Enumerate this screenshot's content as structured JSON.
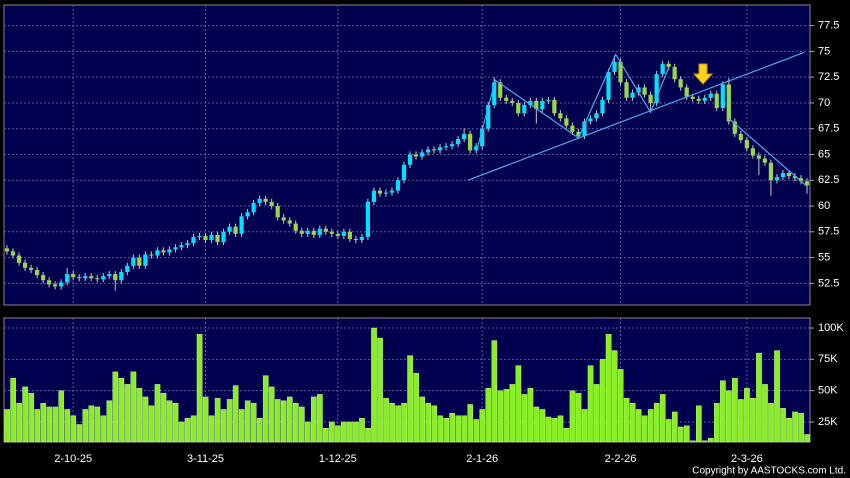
{
  "chart_data": [
    {
      "type": "candlestick",
      "up_color": "#00e0ff",
      "down_color": "#98d848",
      "ylim": [
        50.4,
        79.5
      ],
      "yticks": [
        52.5,
        55,
        57.5,
        60,
        62.5,
        65,
        67.5,
        70,
        72.5,
        75,
        77.5
      ],
      "grid": true,
      "open": [
        55.9,
        55.6,
        55.2,
        54.5,
        54.0,
        53.8,
        53.3,
        52.8,
        52.4,
        52.2,
        52.6,
        53.4,
        53.1,
        53.0,
        53.2,
        53.0,
        52.9,
        53.2,
        53.4,
        52.8,
        53.6,
        54.2,
        55.0,
        54.2,
        55.3,
        55.2,
        55.7,
        55.5,
        55.8,
        56.0,
        56.2,
        56.4,
        57.0,
        57.1,
        56.7,
        57.2,
        56.5,
        57.5,
        58.0,
        57.3,
        59.0,
        59.4,
        60.3,
        60.7,
        60.4,
        60.0,
        58.9,
        58.6,
        58.3,
        57.6,
        57.3,
        57.6,
        57.2,
        57.8,
        57.5,
        57.3,
        57.1,
        57.5,
        56.8,
        56.7,
        57.0,
        60.4,
        61.5,
        61.2,
        61.3,
        61.5,
        62.5,
        64.0,
        65.0,
        64.8,
        65.2,
        65.5,
        65.4,
        65.7,
        65.8,
        66.0,
        66.5,
        67.0,
        65.4,
        65.8,
        67.5,
        69.8,
        72.0,
        70.5,
        70.2,
        70.0,
        69.0,
        69.8,
        70.2,
        69.4,
        70.2,
        70.3,
        69.0,
        68.5,
        67.8,
        67.2,
        66.8,
        68.2,
        68.5,
        69.0,
        70.3,
        73.0,
        74.0,
        72.0,
        70.5,
        71.0,
        71.5,
        70.8,
        70.0,
        72.8,
        73.8,
        73.5,
        72.3,
        71.5,
        70.6,
        70.4,
        70.2,
        70.5,
        70.9,
        69.5,
        71.8,
        68.2,
        67.0,
        66.4,
        65.6,
        64.9,
        64.6,
        64.2,
        62.5,
        62.8,
        63.2,
        62.9,
        62.7,
        62.4
      ],
      "high": [
        56.2,
        55.9,
        55.5,
        54.8,
        54.3,
        54.1,
        53.6,
        53.1,
        52.7,
        52.9,
        54.0,
        53.7,
        53.4,
        53.5,
        53.5,
        53.3,
        53.5,
        53.7,
        53.7,
        53.9,
        54.5,
        55.3,
        55.3,
        55.6,
        55.6,
        56.0,
        56.0,
        56.1,
        56.3,
        56.5,
        56.7,
        57.3,
        57.4,
        57.4,
        57.5,
        57.5,
        57.8,
        58.3,
        58.3,
        59.3,
        59.7,
        60.6,
        61.0,
        61.0,
        60.7,
        60.3,
        59.2,
        58.9,
        58.6,
        57.9,
        57.9,
        57.9,
        58.1,
        58.1,
        57.8,
        57.6,
        57.8,
        57.8,
        57.1,
        57.3,
        60.7,
        61.8,
        61.8,
        61.6,
        61.8,
        62.8,
        64.3,
        65.3,
        65.3,
        65.5,
        65.8,
        65.8,
        66.0,
        66.1,
        66.3,
        66.8,
        67.5,
        67.3,
        66.1,
        67.8,
        70.1,
        72.5,
        72.3,
        70.8,
        70.5,
        70.3,
        70.1,
        70.5,
        70.5,
        70.5,
        70.6,
        70.6,
        69.3,
        68.8,
        68.1,
        67.5,
        68.5,
        68.8,
        69.3,
        70.6,
        73.3,
        74.6,
        74.3,
        72.3,
        71.3,
        71.8,
        71.8,
        71.1,
        73.1,
        74.1,
        74.1,
        73.8,
        72.6,
        71.8,
        70.9,
        70.7,
        70.8,
        71.2,
        71.2,
        72.1,
        72.4,
        68.5,
        67.3,
        66.7,
        65.9,
        65.2,
        64.9,
        64.5,
        63.1,
        63.5,
        63.5,
        63.2,
        63.0,
        62.7
      ],
      "low": [
        55.3,
        54.9,
        54.2,
        53.7,
        53.5,
        53.0,
        52.5,
        52.1,
        51.9,
        51.9,
        52.3,
        52.8,
        52.7,
        52.7,
        52.7,
        52.6,
        52.6,
        52.9,
        51.8,
        52.5,
        53.3,
        53.9,
        53.9,
        53.9,
        54.9,
        54.9,
        55.2,
        55.2,
        55.5,
        55.7,
        55.9,
        56.1,
        56.7,
        56.4,
        56.4,
        56.2,
        56.2,
        57.2,
        57.0,
        57.0,
        58.7,
        59.1,
        60.0,
        60.1,
        59.7,
        58.6,
        58.3,
        58.0,
        57.3,
        57.0,
        57.0,
        56.9,
        56.9,
        57.2,
        57.0,
        56.8,
        56.8,
        56.5,
        56.4,
        56.4,
        56.7,
        60.1,
        60.9,
        60.9,
        61.0,
        61.2,
        62.2,
        63.7,
        64.5,
        64.5,
        64.9,
        65.1,
        65.1,
        65.4,
        65.5,
        65.7,
        66.2,
        65.1,
        65.1,
        65.5,
        67.2,
        69.5,
        70.2,
        69.9,
        69.7,
        68.7,
        68.7,
        69.5,
        68.0,
        69.1,
        69.9,
        68.7,
        68.2,
        67.5,
        66.9,
        66.5,
        66.5,
        67.9,
        68.2,
        68.7,
        70.0,
        72.7,
        71.7,
        70.2,
        70.2,
        70.7,
        70.5,
        69.3,
        69.7,
        72.5,
        73.2,
        72.0,
        71.2,
        70.3,
        70.1,
        69.9,
        69.9,
        70.2,
        69.2,
        69.2,
        67.9,
        66.7,
        66.1,
        65.3,
        64.6,
        63.0,
        63.9,
        61.0,
        62.2,
        62.5,
        62.6,
        62.4,
        62.1,
        61.2
      ],
      "close": [
        55.6,
        55.2,
        54.5,
        54.0,
        53.8,
        53.3,
        52.8,
        52.4,
        52.2,
        52.6,
        53.4,
        53.1,
        53.0,
        53.2,
        53.0,
        52.9,
        53.2,
        53.4,
        52.8,
        53.6,
        54.2,
        55.0,
        54.2,
        55.3,
        55.2,
        55.7,
        55.5,
        55.8,
        56.0,
        56.2,
        56.4,
        57.0,
        57.1,
        56.7,
        57.2,
        56.5,
        57.5,
        58.0,
        57.3,
        59.0,
        59.4,
        60.3,
        60.7,
        60.4,
        60.0,
        58.9,
        58.6,
        58.3,
        57.6,
        57.3,
        57.6,
        57.2,
        57.8,
        57.5,
        57.3,
        57.1,
        57.5,
        56.8,
        56.7,
        57.0,
        60.4,
        61.5,
        61.2,
        61.3,
        61.5,
        62.5,
        64.0,
        65.0,
        64.8,
        65.2,
        65.5,
        65.4,
        65.7,
        65.8,
        66.0,
        66.5,
        67.0,
        65.4,
        65.8,
        67.5,
        69.8,
        72.0,
        70.5,
        70.2,
        70.0,
        69.0,
        69.8,
        70.2,
        69.4,
        70.2,
        70.3,
        69.0,
        68.5,
        67.8,
        67.2,
        66.8,
        68.2,
        68.5,
        69.0,
        70.3,
        73.0,
        74.0,
        72.0,
        70.5,
        71.0,
        71.5,
        70.8,
        70.0,
        72.8,
        73.8,
        73.5,
        72.3,
        71.5,
        70.6,
        70.4,
        70.2,
        70.5,
        70.9,
        69.5,
        71.8,
        68.2,
        67.0,
        66.4,
        65.6,
        64.9,
        64.6,
        64.2,
        62.5,
        62.8,
        63.2,
        62.9,
        62.7,
        62.4,
        62.0
      ],
      "trendline_color": "#4aa8f0",
      "trendlines": [
        {
          "x": [
            76.6,
            132.5
          ],
          "values": [
            62.5,
            74.9
          ]
        },
        {
          "x": [
            78,
            81.2,
            95,
            101.2,
            107,
            110
          ],
          "values": [
            65.2,
            72.2,
            66.6,
            74.7,
            69.1,
            73.4
          ]
        },
        {
          "x": [
            120,
            133
          ],
          "values": [
            68.5,
            61.9
          ]
        }
      ]
    },
    {
      "type": "bar",
      "color": "#88f020",
      "ylim": [
        9000,
        108000
      ],
      "yticks": [
        {
          "value": 25000,
          "label": "25K"
        },
        {
          "value": 50000,
          "label": "50K"
        },
        {
          "value": 75000,
          "label": "75K"
        },
        {
          "value": 100000,
          "label": "100K"
        }
      ],
      "grid": true,
      "categories": [
        null,
        null,
        null,
        null,
        null,
        null,
        null,
        null,
        null,
        null,
        null,
        "2-10-25",
        null,
        null,
        null,
        null,
        null,
        null,
        null,
        null,
        null,
        null,
        null,
        null,
        null,
        null,
        null,
        null,
        null,
        null,
        null,
        null,
        null,
        "3-11-25",
        null,
        null,
        null,
        null,
        null,
        null,
        null,
        null,
        null,
        null,
        null,
        null,
        null,
        null,
        null,
        null,
        null,
        null,
        null,
        null,
        null,
        "1-12-25",
        null,
        null,
        null,
        null,
        null,
        null,
        null,
        null,
        null,
        null,
        null,
        null,
        null,
        null,
        null,
        null,
        null,
        null,
        null,
        null,
        null,
        null,
        null,
        "2-1-26",
        null,
        null,
        null,
        null,
        null,
        null,
        null,
        null,
        null,
        null,
        null,
        null,
        null,
        null,
        null,
        null,
        null,
        null,
        null,
        null,
        null,
        null,
        "2-2-26",
        null,
        null,
        null,
        null,
        null,
        null,
        null,
        null,
        null,
        null,
        null,
        null,
        null,
        null,
        null,
        null,
        null,
        null,
        null,
        null,
        "2-3-26",
        null,
        null,
        null,
        null,
        null,
        null,
        null,
        null,
        null,
        null
      ],
      "values": [
        35000,
        60000,
        40000,
        53000,
        48000,
        35000,
        40000,
        37000,
        37000,
        50000,
        35000,
        30000,
        23000,
        35000,
        38000,
        37000,
        30000,
        42000,
        65000,
        60000,
        55000,
        65000,
        52000,
        45000,
        38000,
        55000,
        48000,
        42000,
        40000,
        25000,
        28000,
        30000,
        95000,
        45000,
        30000,
        44000,
        35000,
        43000,
        54000,
        35000,
        42000,
        40000,
        28000,
        62000,
        53000,
        43000,
        42000,
        45000,
        40000,
        37000,
        25000,
        45000,
        47000,
        20000,
        25000,
        22000,
        25000,
        25000,
        25000,
        28000,
        20000,
        100000,
        92000,
        44000,
        40000,
        38000,
        40000,
        78000,
        64000,
        45000,
        40000,
        38000,
        30000,
        28000,
        32000,
        30000,
        30000,
        39000,
        27000,
        35000,
        52000,
        90000,
        50000,
        51000,
        55000,
        70000,
        47000,
        52000,
        37000,
        35000,
        29000,
        28000,
        30000,
        20000,
        50000,
        48000,
        35000,
        70000,
        55000,
        75000,
        95000,
        82000,
        67000,
        44000,
        40000,
        35000,
        30000,
        35000,
        40000,
        47000,
        27000,
        33000,
        21000,
        22000,
        10000,
        38000,
        10000,
        12000,
        40000,
        58000,
        50000,
        60000,
        43000,
        52000,
        44000,
        80000,
        55000,
        40000,
        82000,
        36000,
        28000,
        33000,
        32000,
        15000
      ]
    }
  ],
  "copyright": "Copyright by AASTOCKS.com Ltd."
}
